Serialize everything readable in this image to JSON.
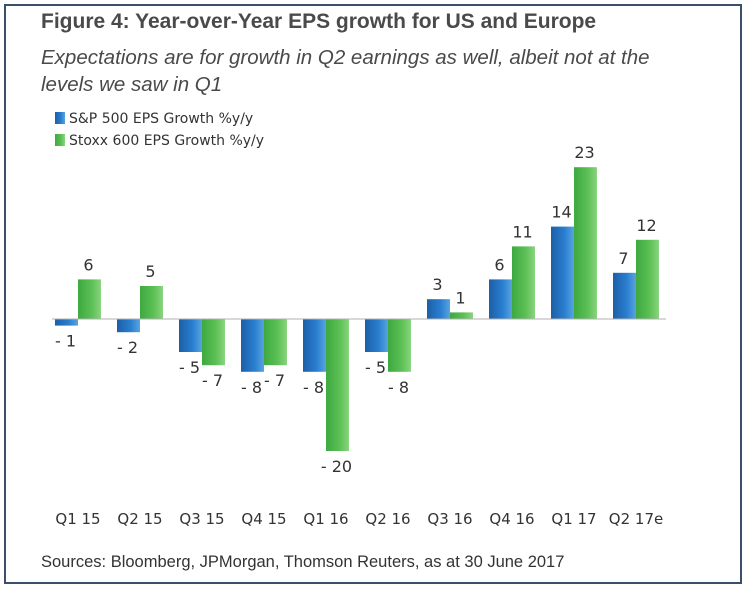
{
  "title": "Figure 4: Year-over-Year EPS growth for US and Europe",
  "subtitle": "Expectations are for growth in Q2 earnings as well, albeit not at the levels we saw in Q1",
  "source": "Sources: Bloomberg, JPMorgan, Thomson Reuters, as at 30 June 2017",
  "chart_data": {
    "type": "bar",
    "categories": [
      "Q1 15",
      "Q2 15",
      "Q3 15",
      "Q4 15",
      "Q1 16",
      "Q2 16",
      "Q3 16",
      "Q4 16",
      "Q1 17",
      "Q2 17e"
    ],
    "series": [
      {
        "name": "S&P 500 EPS Growth %y/y",
        "color": "#1f6fbf",
        "values": [
          -1,
          -2,
          -5,
          -8,
          -8,
          -5,
          3,
          6,
          14,
          7
        ],
        "labels": [
          "- 1",
          "- 2",
          "- 5",
          "- 8",
          "- 8",
          "- 5",
          "3",
          "6",
          "14",
          "7"
        ]
      },
      {
        "name": "Stoxx 600 EPS Growth %y/y",
        "color": "#4db84a",
        "values": [
          6,
          5,
          -7,
          -7,
          -20,
          -8,
          1,
          11,
          23,
          12
        ],
        "labels": [
          "6",
          "5",
          "- 7",
          "- 7",
          "- 20",
          "- 8",
          "1",
          "11",
          "23",
          "12"
        ]
      }
    ],
    "legend_position": "top-left",
    "grid": false,
    "ylim": [
      -22,
      25
    ]
  }
}
